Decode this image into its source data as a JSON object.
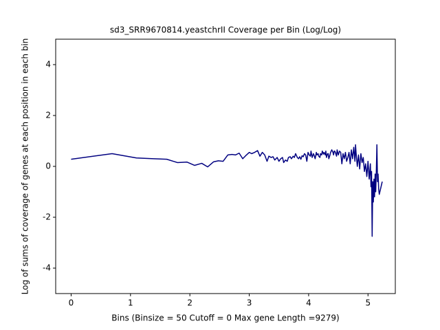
{
  "chart_data": {
    "type": "line",
    "title": "sd3_SRR9670814.yeastchrII Coverage per Bin (Log/Log)",
    "xlabel": "Bins  (Binsize = 50 Cutoff = 0 Max gene Length =9279)",
    "ylabel": "Log of sums of coverage of genes at each position in each bin",
    "color": "#000080",
    "xlim": [
      -0.26,
      5.46
    ],
    "ylim": [
      -5,
      5
    ],
    "xticks": [
      0,
      1,
      2,
      3,
      4,
      5
    ],
    "yticks": [
      -4,
      -2,
      0,
      2,
      4
    ],
    "grid": false,
    "x": [
      0,
      0.69,
      1.1,
      1.39,
      1.61,
      1.79,
      1.95,
      2.08,
      2.2,
      2.3,
      2.4,
      2.48,
      2.56,
      2.64,
      2.71,
      2.77,
      2.83,
      2.89,
      2.94,
      3.0,
      3.04,
      3.09,
      3.14,
      3.18,
      3.22,
      3.26,
      3.3,
      3.33,
      3.37,
      3.4,
      3.43,
      3.47,
      3.5,
      3.53,
      3.56,
      3.58,
      3.61,
      3.64,
      3.66,
      3.69,
      3.71,
      3.74,
      3.76,
      3.78,
      3.81,
      3.83,
      3.85,
      3.87,
      3.89,
      3.91,
      3.93,
      3.95,
      3.97,
      3.99,
      4.01,
      4.03,
      4.04,
      4.06,
      4.08,
      4.09,
      4.11,
      4.13,
      4.14,
      4.16,
      4.17,
      4.19,
      4.2,
      4.22,
      4.23,
      4.25,
      4.26,
      4.28,
      4.29,
      4.3,
      4.32,
      4.33,
      4.34,
      4.36,
      4.37,
      4.38,
      4.39,
      4.41,
      4.42,
      4.43,
      4.44,
      4.45,
      4.47,
      4.48,
      4.5,
      4.52,
      4.54,
      4.56,
      4.58,
      4.6,
      4.62,
      4.64,
      4.66,
      4.68,
      4.7,
      4.72,
      4.74,
      4.76,
      4.78,
      4.79,
      4.8,
      4.82,
      4.84,
      4.86,
      4.88,
      4.9,
      4.92,
      4.94,
      4.96,
      4.98,
      5.0,
      5.02,
      5.04,
      5.05,
      5.06,
      5.07,
      5.08,
      5.09,
      5.1,
      5.11,
      5.12,
      5.13,
      5.14,
      5.15,
      5.16,
      5.17,
      5.18,
      5.19,
      5.21,
      5.22,
      5.24
    ],
    "values": [
      0.28,
      0.5,
      0.33,
      0.3,
      0.28,
      0.15,
      0.17,
      0.04,
      0.12,
      -0.02,
      0.18,
      0.22,
      0.2,
      0.45,
      0.47,
      0.45,
      0.52,
      0.3,
      0.42,
      0.55,
      0.5,
      0.55,
      0.62,
      0.4,
      0.55,
      0.45,
      0.2,
      0.4,
      0.35,
      0.38,
      0.25,
      0.35,
      0.2,
      0.3,
      0.35,
      0.15,
      0.25,
      0.2,
      0.35,
      0.38,
      0.3,
      0.4,
      0.35,
      0.5,
      0.35,
      0.3,
      0.38,
      0.28,
      0.42,
      0.38,
      0.5,
      0.45,
      0.2,
      0.55,
      0.45,
      0.4,
      0.6,
      0.35,
      0.5,
      0.45,
      0.3,
      0.55,
      0.45,
      0.5,
      0.4,
      0.35,
      0.5,
      0.45,
      0.6,
      0.48,
      0.55,
      0.45,
      0.6,
      0.35,
      0.5,
      0.5,
      0.3,
      0.45,
      0.55,
      0.6,
      0.65,
      0.55,
      0.45,
      0.6,
      0.6,
      0.55,
      0.4,
      0.65,
      0.45,
      0.6,
      0.55,
      0.1,
      0.5,
      0.3,
      0.55,
      0.2,
      0.35,
      0.55,
      0.1,
      0.65,
      0.3,
      0.75,
      0.2,
      0.85,
      0.5,
      0.0,
      0.45,
      -0.1,
      0.5,
      0.15,
      0.35,
      -0.2,
      0.1,
      -0.4,
      0.2,
      -0.5,
      0.1,
      -0.8,
      -0.2,
      -2.75,
      -0.6,
      -1.4,
      -0.5,
      -1.2,
      -0.3,
      -1.0,
      -0.2,
      0.85,
      -0.6,
      -0.3,
      -0.9,
      -1.1,
      -0.9,
      -0.8,
      -0.6
    ]
  }
}
